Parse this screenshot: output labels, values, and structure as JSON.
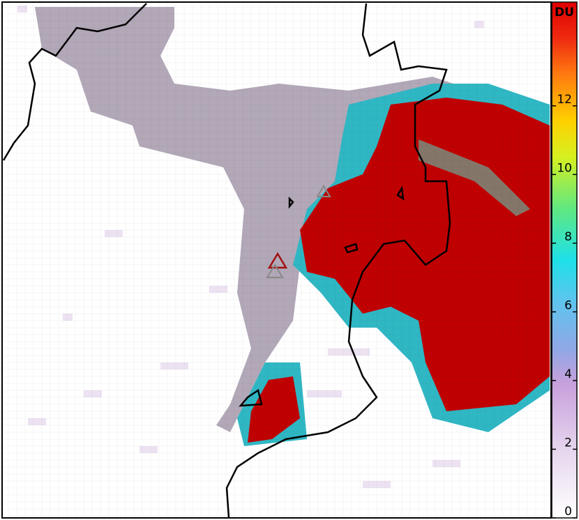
{
  "colorbar": {
    "label": "DU",
    "ticks": [
      0,
      2,
      4,
      6,
      8,
      10,
      12
    ],
    "lim": [
      0,
      15
    ]
  }
}
